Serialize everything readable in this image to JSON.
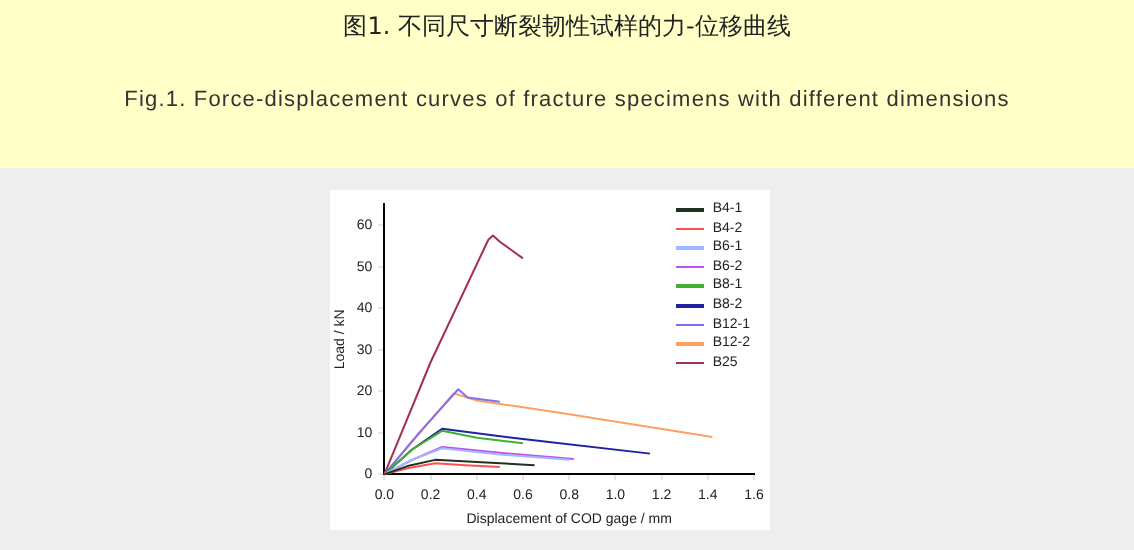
{
  "chart_data": {
    "type": "line",
    "title": "图1. 不同尺寸断裂韧性试样的力-位移曲线",
    "subtitle": "Fig.1. Force-displacement curves of fracture specimens with different dimensions",
    "xlabel": "Displacement of COD gage / mm",
    "ylabel": "Load / kN",
    "xlim": [
      0,
      1.6
    ],
    "xticks": [
      {
        "value": 0,
        "label": "0.0"
      },
      {
        "value": 0.2,
        "label": "0.2"
      },
      {
        "value": 0.4,
        "label": "0.4"
      },
      {
        "value": 0.6,
        "label": "0.6"
      },
      {
        "value": 0.8,
        "label": "0.8"
      },
      {
        "value": 1,
        "label": "1.0"
      },
      {
        "value": 1.2,
        "label": "1.2"
      },
      {
        "value": 1.4,
        "label": "1.4"
      },
      {
        "value": 1.6,
        "label": "1.6"
      }
    ],
    "ylim": [
      0,
      65
    ],
    "yticks": [
      0,
      10,
      20,
      30,
      40,
      50,
      60
    ],
    "grid": false,
    "legend": "top right",
    "marker": "none",
    "line_style": "solid",
    "series": [
      {
        "name": "B4-1",
        "color": "#203020",
        "x": [
          0,
          0.1,
          0.22,
          0.4,
          0.65
        ],
        "values": [
          0,
          2,
          3.5,
          3,
          2.2
        ]
      },
      {
        "name": "B4-2",
        "color": "#ff5050",
        "x": [
          0,
          0.1,
          0.22,
          0.35,
          0.5
        ],
        "values": [
          0,
          1.5,
          2.7,
          2.2,
          1.8
        ]
      },
      {
        "name": "B6-1",
        "color": "#a0b8ff",
        "x": [
          0,
          0.12,
          0.25,
          0.5,
          0.8
        ],
        "values": [
          0,
          3.5,
          6.3,
          4.8,
          3.5
        ]
      },
      {
        "name": "B6-2",
        "color": "#c050f0",
        "x": [
          0,
          0.12,
          0.25,
          0.5,
          0.82
        ],
        "values": [
          0,
          3.5,
          6.6,
          5.2,
          3.7
        ]
      },
      {
        "name": "B8-1",
        "color": "#40b030",
        "x": [
          0,
          0.12,
          0.25,
          0.4,
          0.6
        ],
        "values": [
          0,
          6,
          10.5,
          8.8,
          7.5
        ]
      },
      {
        "name": "B8-2",
        "color": "#2020a0",
        "x": [
          0,
          0.12,
          0.25,
          0.6,
          1.15
        ],
        "values": [
          0,
          6,
          11,
          8.5,
          5
        ]
      },
      {
        "name": "B12-1",
        "color": "#8070f0",
        "x": [
          0,
          0.15,
          0.32,
          0.36,
          0.5
        ],
        "values": [
          0,
          10,
          20.5,
          18.5,
          17.5
        ]
      },
      {
        "name": "B12-2",
        "color": "#ffa060",
        "x": [
          0,
          0.3,
          0.4,
          0.8,
          1.42
        ],
        "values": [
          0,
          19.5,
          17.8,
          14.5,
          9
        ]
      },
      {
        "name": "B25",
        "color": "#a03050",
        "x": [
          0,
          0.2,
          0.45,
          0.47,
          0.5,
          0.6
        ],
        "values": [
          0,
          27,
          56.5,
          57.5,
          56,
          52
        ]
      }
    ]
  }
}
